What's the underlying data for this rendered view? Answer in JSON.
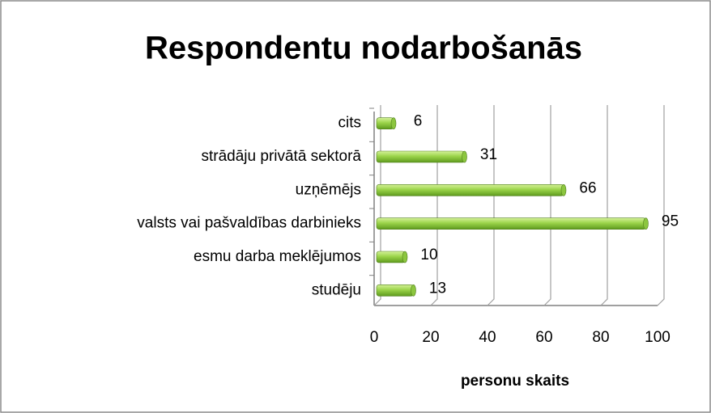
{
  "chart_data": {
    "type": "bar",
    "orientation": "horizontal",
    "title": "Respondentu nodarbošanās",
    "categories": [
      "cits",
      "strādāju privātā sektorā",
      "uzņēmējs",
      "valsts vai pašvaldības darbinieks",
      "esmu darba meklējumos",
      "studēju"
    ],
    "values": [
      6,
      31,
      66,
      95,
      10,
      13
    ],
    "color": "#8cc63f",
    "xlabel": "personu skaits",
    "xlim": [
      0,
      100
    ],
    "xticks": [
      0,
      20,
      40,
      60,
      80,
      100
    ],
    "grid": true
  }
}
